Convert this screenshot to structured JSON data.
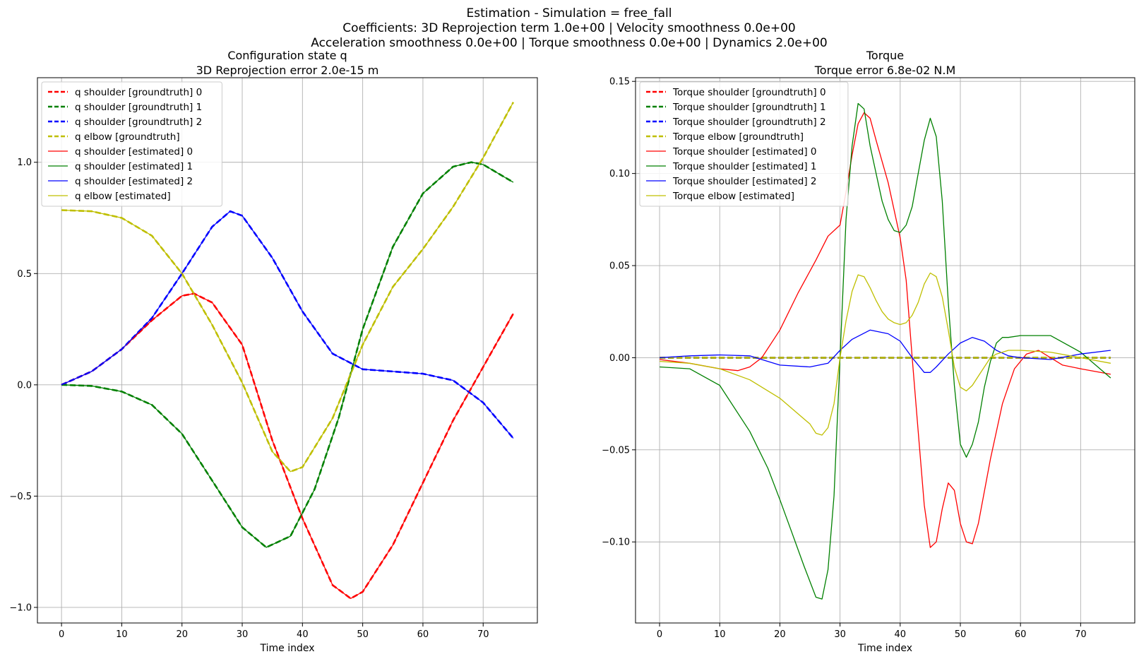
{
  "suptitle": [
    "Estimation - Simulation = free_fall",
    "Coefficients: 3D Reprojection term 1.0e+00 | Velocity smoothness 0.0e+00",
    "Acceleration smoothness 0.0e+00 | Torque smoothness 0.0e+00 | Dynamics 2.0e+00"
  ],
  "chart_data": [
    {
      "type": "line",
      "title": [
        "Configuration state q",
        "3D Reprojection error 2.0e-15 m"
      ],
      "xlabel": "Time index",
      "ylabel": "",
      "xlim": [
        -4,
        79
      ],
      "ylim": [
        -1.07,
        1.38
      ],
      "xticks": [
        0,
        10,
        20,
        30,
        40,
        50,
        60,
        70
      ],
      "xtick_labels": [
        "0",
        "10",
        "20",
        "30",
        "40",
        "50",
        "60",
        "70"
      ],
      "yticks": [
        -1.0,
        -0.5,
        0.0,
        0.5,
        1.0
      ],
      "ytick_labels": [
        "−1.0",
        "−0.5",
        "0.0",
        "0.5",
        "1.0"
      ],
      "grid": true,
      "legend_position": "upper-left",
      "series": [
        {
          "name": "q shoulder [groundtruth] 0",
          "color": "#ff0000",
          "style": "dashed",
          "x": [
            0,
            5,
            10,
            15,
            20,
            22,
            25,
            30,
            35,
            40,
            45,
            48,
            50,
            55,
            60,
            65,
            70,
            75
          ],
          "y": [
            0.0,
            0.06,
            0.16,
            0.29,
            0.4,
            0.41,
            0.37,
            0.18,
            -0.25,
            -0.6,
            -0.9,
            -0.96,
            -0.93,
            -0.72,
            -0.44,
            -0.16,
            0.08,
            0.32
          ]
        },
        {
          "name": "q shoulder [groundtruth] 1",
          "color": "#008000",
          "style": "dashed",
          "x": [
            0,
            5,
            10,
            15,
            20,
            25,
            30,
            34,
            38,
            42,
            46,
            50,
            55,
            60,
            65,
            68,
            70,
            75
          ],
          "y": [
            0.0,
            -0.005,
            -0.03,
            -0.09,
            -0.22,
            -0.43,
            -0.64,
            -0.73,
            -0.68,
            -0.47,
            -0.15,
            0.25,
            0.62,
            0.86,
            0.98,
            1.0,
            0.99,
            0.91
          ]
        },
        {
          "name": "q shoulder [groundtruth] 2",
          "color": "#0000ff",
          "style": "dashed",
          "x": [
            0,
            5,
            10,
            15,
            20,
            25,
            28,
            30,
            35,
            40,
            45,
            50,
            55,
            60,
            65,
            70,
            75
          ],
          "y": [
            0.0,
            0.06,
            0.16,
            0.3,
            0.5,
            0.71,
            0.78,
            0.76,
            0.57,
            0.33,
            0.14,
            0.07,
            0.06,
            0.05,
            0.02,
            -0.08,
            -0.24
          ]
        },
        {
          "name": "q elbow [groundtruth]",
          "color": "#bfbf00",
          "style": "dashed",
          "x": [
            0,
            5,
            10,
            15,
            20,
            25,
            30,
            35,
            38,
            40,
            45,
            50,
            55,
            60,
            65,
            70,
            75
          ],
          "y": [
            0.785,
            0.78,
            0.75,
            0.67,
            0.5,
            0.27,
            0.01,
            -0.3,
            -0.39,
            -0.37,
            -0.15,
            0.18,
            0.44,
            0.61,
            0.8,
            1.02,
            1.27
          ]
        },
        {
          "name": "q shoulder [estimated] 0",
          "color": "#ff0000",
          "style": "solid",
          "x": [
            0,
            5,
            10,
            15,
            20,
            22,
            25,
            30,
            35,
            40,
            45,
            48,
            50,
            55,
            60,
            65,
            70,
            75
          ],
          "y": [
            0.0,
            0.06,
            0.16,
            0.29,
            0.4,
            0.41,
            0.37,
            0.18,
            -0.25,
            -0.6,
            -0.9,
            -0.96,
            -0.93,
            -0.72,
            -0.44,
            -0.16,
            0.08,
            0.32
          ]
        },
        {
          "name": "q shoulder [estimated] 1",
          "color": "#008000",
          "style": "solid",
          "x": [
            0,
            5,
            10,
            15,
            20,
            25,
            30,
            34,
            38,
            42,
            46,
            50,
            55,
            60,
            65,
            68,
            70,
            75
          ],
          "y": [
            0.0,
            -0.005,
            -0.03,
            -0.09,
            -0.22,
            -0.43,
            -0.64,
            -0.73,
            -0.68,
            -0.47,
            -0.15,
            0.25,
            0.62,
            0.86,
            0.98,
            1.0,
            0.99,
            0.91
          ]
        },
        {
          "name": "q shoulder [estimated] 2",
          "color": "#0000ff",
          "style": "solid",
          "x": [
            0,
            5,
            10,
            15,
            20,
            25,
            28,
            30,
            35,
            40,
            45,
            50,
            55,
            60,
            65,
            70,
            75
          ],
          "y": [
            0.0,
            0.06,
            0.16,
            0.3,
            0.5,
            0.71,
            0.78,
            0.76,
            0.57,
            0.33,
            0.14,
            0.07,
            0.06,
            0.05,
            0.02,
            -0.08,
            -0.24
          ]
        },
        {
          "name": "q elbow [estimated]",
          "color": "#bfbf00",
          "style": "solid",
          "x": [
            0,
            5,
            10,
            15,
            20,
            25,
            30,
            35,
            38,
            40,
            45,
            50,
            55,
            60,
            65,
            70,
            75
          ],
          "y": [
            0.785,
            0.78,
            0.75,
            0.67,
            0.5,
            0.27,
            0.01,
            -0.3,
            -0.39,
            -0.37,
            -0.15,
            0.18,
            0.44,
            0.61,
            0.8,
            1.02,
            1.27
          ]
        }
      ]
    },
    {
      "type": "line",
      "title": [
        "Torque",
        "Torque error 6.8e-02 N.M"
      ],
      "xlabel": "Time index",
      "ylabel": "",
      "xlim": [
        -4,
        79
      ],
      "ylim": [
        -0.144,
        0.152
      ],
      "xticks": [
        0,
        10,
        20,
        30,
        40,
        50,
        60,
        70
      ],
      "xtick_labels": [
        "0",
        "10",
        "20",
        "30",
        "40",
        "50",
        "60",
        "70"
      ],
      "yticks": [
        -0.1,
        -0.05,
        0.0,
        0.05,
        0.1,
        0.15
      ],
      "ytick_labels": [
        "−0.10",
        "−0.05",
        "0.00",
        "0.05",
        "0.10",
        "0.15"
      ],
      "grid": true,
      "legend_position": "upper-left",
      "series": [
        {
          "name": "Torque shoulder [groundtruth] 0",
          "color": "#ff0000",
          "style": "dashed",
          "x": [
            0,
            75
          ],
          "y": [
            0.0,
            0.0
          ]
        },
        {
          "name": "Torque shoulder [groundtruth] 1",
          "color": "#008000",
          "style": "dashed",
          "x": [
            0,
            75
          ],
          "y": [
            0.0,
            0.0
          ]
        },
        {
          "name": "Torque shoulder [groundtruth] 2",
          "color": "#0000ff",
          "style": "dashed",
          "x": [
            0,
            75
          ],
          "y": [
            0.0,
            0.0
          ]
        },
        {
          "name": "Torque elbow [groundtruth]",
          "color": "#bfbf00",
          "style": "dashed",
          "x": [
            0,
            75
          ],
          "y": [
            0.0,
            0.0
          ]
        },
        {
          "name": "Torque shoulder [estimated] 0",
          "color": "#ff0000",
          "style": "solid",
          "x": [
            0,
            5,
            10,
            13,
            15,
            17,
            20,
            23,
            26,
            28,
            30,
            31,
            32,
            33,
            34,
            35,
            36,
            38,
            40,
            41,
            42,
            43,
            44,
            45,
            46,
            47,
            48,
            49,
            50,
            51,
            52,
            53,
            55,
            57,
            59,
            61,
            63,
            65,
            67,
            70,
            75
          ],
          "y": [
            -0.001,
            -0.003,
            -0.006,
            -0.007,
            -0.005,
            0.0,
            0.015,
            0.035,
            0.053,
            0.066,
            0.072,
            0.09,
            0.11,
            0.127,
            0.133,
            0.13,
            0.118,
            0.095,
            0.065,
            0.042,
            0.0,
            -0.04,
            -0.08,
            -0.103,
            -0.1,
            -0.082,
            -0.068,
            -0.072,
            -0.09,
            -0.1,
            -0.101,
            -0.09,
            -0.055,
            -0.025,
            -0.006,
            0.002,
            0.004,
            0.0,
            -0.004,
            -0.006,
            -0.009
          ]
        },
        {
          "name": "Torque shoulder [estimated] 1",
          "color": "#008000",
          "style": "solid",
          "x": [
            0,
            5,
            10,
            15,
            18,
            20,
            22,
            24,
            26,
            27,
            28,
            29,
            30,
            31,
            32,
            33,
            34,
            35,
            36,
            37,
            38,
            39,
            40,
            41,
            42,
            43,
            44,
            45,
            46,
            47,
            48,
            49,
            50,
            51,
            52,
            53,
            54,
            55,
            56,
            57,
            58,
            60,
            65,
            70,
            75
          ],
          "y": [
            -0.005,
            -0.006,
            -0.015,
            -0.04,
            -0.06,
            -0.077,
            -0.095,
            -0.113,
            -0.13,
            -0.131,
            -0.115,
            -0.075,
            0.0,
            0.075,
            0.115,
            0.138,
            0.135,
            0.115,
            0.1,
            0.085,
            0.075,
            0.069,
            0.068,
            0.072,
            0.082,
            0.1,
            0.118,
            0.13,
            0.12,
            0.085,
            0.03,
            -0.015,
            -0.047,
            -0.054,
            -0.047,
            -0.035,
            -0.016,
            -0.002,
            0.008,
            0.011,
            0.011,
            0.012,
            0.012,
            0.003,
            -0.011
          ]
        },
        {
          "name": "Torque shoulder [estimated] 2",
          "color": "#0000ff",
          "style": "solid",
          "x": [
            0,
            5,
            10,
            15,
            20,
            25,
            28,
            30,
            32,
            35,
            38,
            40,
            42,
            44,
            45,
            46,
            48,
            50,
            52,
            54,
            56,
            58,
            60,
            65,
            70,
            75
          ],
          "y": [
            0.0,
            0.001,
            0.0015,
            0.001,
            -0.004,
            -0.005,
            -0.003,
            0.004,
            0.01,
            0.015,
            0.013,
            0.009,
            0.0,
            -0.008,
            -0.008,
            -0.005,
            0.002,
            0.008,
            0.011,
            0.009,
            0.004,
            0.001,
            0.0,
            -0.001,
            0.002,
            0.004
          ]
        },
        {
          "name": "Torque elbow [estimated]",
          "color": "#bfbf00",
          "style": "solid",
          "x": [
            0,
            5,
            10,
            15,
            20,
            25,
            26,
            27,
            28,
            29,
            30,
            31,
            32,
            33,
            34,
            35,
            36,
            37,
            38,
            39,
            40,
            41,
            42,
            43,
            44,
            45,
            46,
            47,
            48,
            49,
            50,
            51,
            52,
            53,
            54,
            55,
            56,
            58,
            60,
            65,
            70,
            75
          ],
          "y": [
            -0.002,
            -0.003,
            -0.006,
            -0.012,
            -0.022,
            -0.036,
            -0.041,
            -0.042,
            -0.038,
            -0.025,
            -0.0,
            0.02,
            0.036,
            0.045,
            0.044,
            0.038,
            0.031,
            0.025,
            0.021,
            0.019,
            0.018,
            0.019,
            0.023,
            0.03,
            0.04,
            0.046,
            0.044,
            0.033,
            0.015,
            -0.005,
            -0.016,
            -0.018,
            -0.015,
            -0.01,
            -0.005,
            0.0,
            0.002,
            0.004,
            0.004,
            0.003,
            0.0,
            -0.003
          ]
        }
      ]
    }
  ]
}
